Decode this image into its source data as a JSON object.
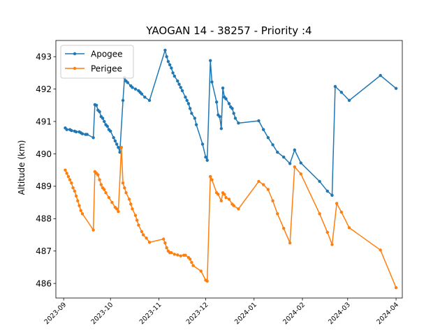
{
  "chart_data": {
    "type": "line",
    "title": "YAOGAN 14 - 38257 - Priority :4",
    "xlabel": "",
    "ylabel": "Altitude (km)",
    "x_type": "date",
    "xlim": [
      "2023-08-27",
      "2024-04-05"
    ],
    "ylim": [
      485.55,
      493.5
    ],
    "x_ticks": [
      "2023-09",
      "2023-10",
      "2023-11",
      "2023-12",
      "2024-01",
      "2024-02",
      "2024-03",
      "2024-04"
    ],
    "x_tick_dates": [
      "2023-09-01",
      "2023-10-01",
      "2023-11-01",
      "2023-12-01",
      "2024-01-01",
      "2024-02-01",
      "2024-03-01",
      "2024-04-01"
    ],
    "y_ticks": [
      486,
      487,
      488,
      489,
      490,
      491,
      492,
      493
    ],
    "grid": false,
    "legend_position": "top-left",
    "series": [
      {
        "name": "Apogee",
        "color": "#1f77b4",
        "points": [
          [
            "2023-09-02",
            490.8
          ],
          [
            "2023-09-03",
            490.75
          ],
          [
            "2023-09-05",
            490.75
          ],
          [
            "2023-09-06",
            490.72
          ],
          [
            "2023-09-08",
            490.7
          ],
          [
            "2023-09-09",
            490.68
          ],
          [
            "2023-09-11",
            490.68
          ],
          [
            "2023-09-12",
            490.65
          ],
          [
            "2023-09-13",
            490.62
          ],
          [
            "2023-09-15",
            490.6
          ],
          [
            "2023-09-16",
            490.6
          ],
          [
            "2023-09-20",
            490.5
          ],
          [
            "2023-09-21",
            491.52
          ],
          [
            "2023-09-22",
            491.5
          ],
          [
            "2023-09-23",
            491.35
          ],
          [
            "2023-09-24",
            491.3
          ],
          [
            "2023-09-25",
            491.15
          ],
          [
            "2023-09-26",
            491.1
          ],
          [
            "2023-09-27",
            491.0
          ],
          [
            "2023-09-28",
            490.9
          ],
          [
            "2023-09-29",
            490.85
          ],
          [
            "2023-09-30",
            490.75
          ],
          [
            "2023-10-01",
            490.7
          ],
          [
            "2023-10-03",
            490.5
          ],
          [
            "2023-10-04",
            490.4
          ],
          [
            "2023-10-05",
            490.3
          ],
          [
            "2023-10-06",
            490.2
          ],
          [
            "2023-10-07",
            490.05
          ],
          [
            "2023-10-09",
            491.65
          ],
          [
            "2023-10-10",
            492.35
          ],
          [
            "2023-10-11",
            492.25
          ],
          [
            "2023-10-12",
            492.2
          ],
          [
            "2023-10-14",
            492.1
          ],
          [
            "2023-10-15",
            492.05
          ],
          [
            "2023-10-17",
            492.0
          ],
          [
            "2023-10-19",
            491.95
          ],
          [
            "2023-10-20",
            491.9
          ],
          [
            "2023-10-21",
            491.85
          ],
          [
            "2023-10-23",
            491.75
          ],
          [
            "2023-10-26",
            491.65
          ],
          [
            "2023-11-05",
            493.2
          ],
          [
            "2023-11-06",
            493.0
          ],
          [
            "2023-11-07",
            492.85
          ],
          [
            "2023-11-08",
            492.75
          ],
          [
            "2023-11-09",
            492.65
          ],
          [
            "2023-11-10",
            492.5
          ],
          [
            "2023-11-11",
            492.4
          ],
          [
            "2023-11-13",
            492.25
          ],
          [
            "2023-11-14",
            492.15
          ],
          [
            "2023-11-15",
            492.05
          ],
          [
            "2023-11-16",
            491.95
          ],
          [
            "2023-11-18",
            491.75
          ],
          [
            "2023-11-19",
            491.65
          ],
          [
            "2023-11-20",
            491.55
          ],
          [
            "2023-11-21",
            491.4
          ],
          [
            "2023-11-22",
            491.25
          ],
          [
            "2023-11-24",
            491.1
          ],
          [
            "2023-11-25",
            490.9
          ],
          [
            "2023-11-29",
            490.3
          ],
          [
            "2023-12-01",
            489.9
          ],
          [
            "2023-12-02",
            489.8
          ],
          [
            "2023-12-04",
            492.88
          ],
          [
            "2023-12-05",
            492.22
          ],
          [
            "2023-12-08",
            491.6
          ],
          [
            "2023-12-09",
            491.2
          ],
          [
            "2023-12-10",
            491.15
          ],
          [
            "2023-12-11",
            490.78
          ],
          [
            "2023-12-12",
            492.03
          ],
          [
            "2023-12-13",
            491.75
          ],
          [
            "2023-12-14",
            491.7
          ],
          [
            "2023-12-16",
            491.55
          ],
          [
            "2023-12-17",
            491.45
          ],
          [
            "2023-12-18",
            491.4
          ],
          [
            "2023-12-19",
            491.25
          ],
          [
            "2023-12-20",
            491.1
          ],
          [
            "2023-12-22",
            490.95
          ],
          [
            "2024-01-04",
            491.02
          ],
          [
            "2024-01-07",
            490.75
          ],
          [
            "2024-01-10",
            490.5
          ],
          [
            "2024-01-13",
            490.28
          ],
          [
            "2024-01-16",
            490.05
          ],
          [
            "2024-01-20",
            489.9
          ],
          [
            "2024-01-24",
            489.7
          ],
          [
            "2024-01-27",
            490.12
          ],
          [
            "2024-01-31",
            489.72
          ],
          [
            "2024-02-12",
            489.15
          ],
          [
            "2024-02-17",
            488.85
          ],
          [
            "2024-02-20",
            488.72
          ],
          [
            "2024-02-22",
            492.08
          ],
          [
            "2024-02-26",
            491.9
          ],
          [
            "2024-03-02",
            491.65
          ],
          [
            "2024-03-22",
            492.42
          ],
          [
            "2024-04-01",
            492.02
          ]
        ]
      },
      {
        "name": "Perigee",
        "color": "#ff7f0e",
        "points": [
          [
            "2023-09-02",
            489.5
          ],
          [
            "2023-09-03",
            489.4
          ],
          [
            "2023-09-04",
            489.3
          ],
          [
            "2023-09-05",
            489.2
          ],
          [
            "2023-09-06",
            489.1
          ],
          [
            "2023-09-07",
            488.95
          ],
          [
            "2023-09-08",
            488.85
          ],
          [
            "2023-09-09",
            488.7
          ],
          [
            "2023-09-10",
            488.55
          ],
          [
            "2023-09-11",
            488.4
          ],
          [
            "2023-09-12",
            488.25
          ],
          [
            "2023-09-13",
            488.15
          ],
          [
            "2023-09-20",
            487.65
          ],
          [
            "2023-09-21",
            489.45
          ],
          [
            "2023-09-22",
            489.4
          ],
          [
            "2023-09-23",
            489.35
          ],
          [
            "2023-09-24",
            489.2
          ],
          [
            "2023-09-25",
            489.05
          ],
          [
            "2023-09-26",
            488.95
          ],
          [
            "2023-09-27",
            488.9
          ],
          [
            "2023-09-28",
            488.8
          ],
          [
            "2023-09-30",
            488.65
          ],
          [
            "2023-10-02",
            488.5
          ],
          [
            "2023-10-04",
            488.35
          ],
          [
            "2023-10-05",
            488.3
          ],
          [
            "2023-10-06",
            488.22
          ],
          [
            "2023-10-08",
            490.2
          ],
          [
            "2023-10-09",
            489.1
          ],
          [
            "2023-10-10",
            488.95
          ],
          [
            "2023-10-11",
            488.8
          ],
          [
            "2023-10-13",
            488.6
          ],
          [
            "2023-10-14",
            488.45
          ],
          [
            "2023-10-15",
            488.3
          ],
          [
            "2023-10-17",
            488.1
          ],
          [
            "2023-10-18",
            487.95
          ],
          [
            "2023-10-19",
            487.8
          ],
          [
            "2023-10-21",
            487.6
          ],
          [
            "2023-10-22",
            487.5
          ],
          [
            "2023-10-24",
            487.4
          ],
          [
            "2023-10-26",
            487.27
          ],
          [
            "2023-11-04",
            487.37
          ],
          [
            "2023-11-05",
            487.25
          ],
          [
            "2023-11-06",
            487.1
          ],
          [
            "2023-11-07",
            487.0
          ],
          [
            "2023-11-08",
            486.95
          ],
          [
            "2023-11-09",
            486.95
          ],
          [
            "2023-11-11",
            486.9
          ],
          [
            "2023-11-13",
            486.88
          ],
          [
            "2023-11-15",
            486.85
          ],
          [
            "2023-11-17",
            486.87
          ],
          [
            "2023-11-18",
            486.87
          ],
          [
            "2023-11-20",
            486.8
          ],
          [
            "2023-11-21",
            486.75
          ],
          [
            "2023-11-22",
            486.65
          ],
          [
            "2023-11-23",
            486.55
          ],
          [
            "2023-11-28",
            486.38
          ],
          [
            "2023-12-01",
            486.1
          ],
          [
            "2023-12-02",
            486.07
          ],
          [
            "2023-12-04",
            489.3
          ],
          [
            "2023-12-05",
            489.2
          ],
          [
            "2023-12-08",
            488.8
          ],
          [
            "2023-12-09",
            488.75
          ],
          [
            "2023-12-11",
            488.55
          ],
          [
            "2023-12-12",
            488.8
          ],
          [
            "2023-12-13",
            488.75
          ],
          [
            "2023-12-14",
            488.65
          ],
          [
            "2023-12-16",
            488.6
          ],
          [
            "2023-12-18",
            488.45
          ],
          [
            "2023-12-19",
            488.4
          ],
          [
            "2023-12-22",
            488.3
          ],
          [
            "2024-01-04",
            489.15
          ],
          [
            "2024-01-07",
            489.05
          ],
          [
            "2024-01-10",
            488.9
          ],
          [
            "2024-01-13",
            488.55
          ],
          [
            "2024-01-16",
            488.15
          ],
          [
            "2024-01-20",
            487.7
          ],
          [
            "2024-01-24",
            487.25
          ],
          [
            "2024-01-27",
            489.6
          ],
          [
            "2024-01-31",
            489.38
          ],
          [
            "2024-02-12",
            488.15
          ],
          [
            "2024-02-17",
            487.58
          ],
          [
            "2024-02-20",
            487.2
          ],
          [
            "2024-02-23",
            488.47
          ],
          [
            "2024-02-26",
            488.2
          ],
          [
            "2024-03-02",
            487.72
          ],
          [
            "2024-03-22",
            487.03
          ],
          [
            "2024-04-01",
            485.87
          ]
        ]
      }
    ]
  }
}
